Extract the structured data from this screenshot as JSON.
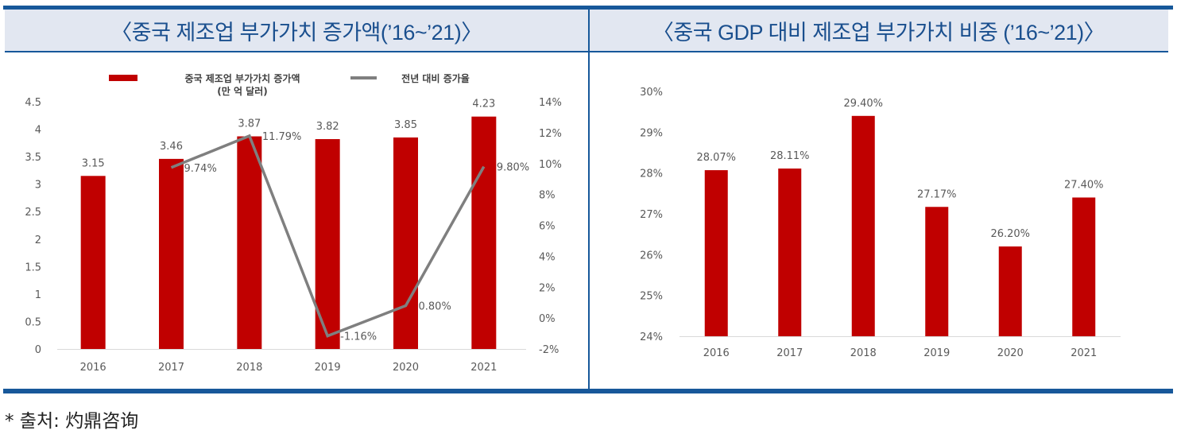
{
  "colors": {
    "bar": "#c00000",
    "line": "#7f7f7f",
    "accent": "#17589a",
    "header_bg": "#e2e7f1",
    "header_text": "#1a4f8e"
  },
  "headers": {
    "left_title": "〈중국 제조업 부가가치 증가액(’16~’21)〉",
    "right_title": "〈중국 GDP 대비 제조업 부가가치 비중 (’16~’21)〉"
  },
  "source": "* 출처: 灼鼎咨询",
  "chart_data": [
    {
      "type": "bar",
      "title": "중국 제조업 부가가치 증가액('16~'21)",
      "categories": [
        "2016",
        "2017",
        "2018",
        "2019",
        "2020",
        "2021"
      ],
      "legend_position": "top",
      "series": [
        {
          "name": "중국 제조업 부가가치 증가액",
          "name_line2": "(만 억 달러)",
          "type": "bar",
          "axis": "left",
          "values": [
            3.15,
            3.46,
            3.87,
            3.82,
            3.85,
            4.23
          ],
          "labels": [
            "3.15",
            "3.46",
            "3.87",
            "3.82",
            "3.85",
            "4.23"
          ]
        },
        {
          "name": "전년 대비 증가율",
          "type": "line",
          "axis": "right",
          "values": [
            null,
            9.74,
            11.79,
            -1.16,
            0.8,
            9.8
          ],
          "labels": [
            "",
            "9.74%",
            "11.79%",
            "-1.16%",
            "0.80%",
            "9.80%"
          ]
        }
      ],
      "ylim": [
        0,
        4.5
      ],
      "yticks": [
        "0",
        "0.5",
        "1",
        "1.5",
        "2",
        "2.5",
        "3",
        "3.5",
        "4",
        "4.5"
      ],
      "y2lim": [
        -2,
        14
      ],
      "y2ticks": [
        "-2%",
        "0%",
        "2%",
        "4%",
        "6%",
        "8%",
        "10%",
        "12%",
        "14%"
      ],
      "xlabel": "",
      "ylabel": "",
      "grid": false
    },
    {
      "type": "bar",
      "title": "중국 GDP 대비 제조업 부가가치 비중 ('16~'21)",
      "categories": [
        "2016",
        "2017",
        "2018",
        "2019",
        "2020",
        "2021"
      ],
      "values": [
        28.07,
        28.11,
        29.4,
        27.17,
        26.2,
        27.4
      ],
      "labels": [
        "28.07%",
        "28.11%",
        "29.40%",
        "27.17%",
        "26.20%",
        "27.40%"
      ],
      "ylim": [
        24,
        30
      ],
      "yticks": [
        "24%",
        "25%",
        "26%",
        "27%",
        "28%",
        "29%",
        "30%"
      ],
      "xlabel": "",
      "ylabel": "",
      "grid": false
    }
  ]
}
